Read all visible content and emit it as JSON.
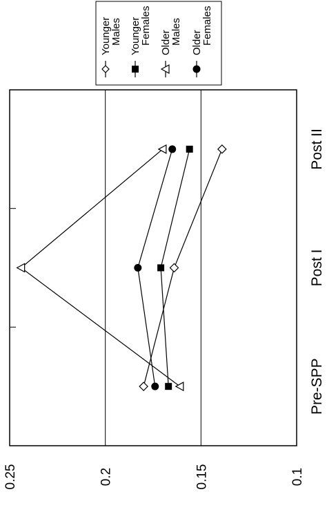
{
  "chart_data": {
    "type": "line",
    "orientation": "rotated-90-clockwise",
    "categories": [
      "Pre-SPP",
      "Post I",
      "Post II"
    ],
    "ylim": [
      0.1,
      0.25
    ],
    "yticks": [
      "0.1",
      "0.15",
      "0.2",
      "0.25"
    ],
    "grid": true,
    "legend_position": "top-right",
    "series": [
      {
        "name": "Younger Males",
        "marker": "diamond-open",
        "values": [
          0.18,
          0.164,
          0.139
        ]
      },
      {
        "name": "Younger Females",
        "marker": "square-filled",
        "values": [
          0.167,
          0.171,
          0.156
        ]
      },
      {
        "name": "Older Males",
        "marker": "triangle-open",
        "values": [
          0.161,
          0.244,
          0.17
        ]
      },
      {
        "name": "Older Females",
        "marker": "circle-filled",
        "values": [
          0.174,
          0.183,
          0.165
        ]
      }
    ]
  }
}
